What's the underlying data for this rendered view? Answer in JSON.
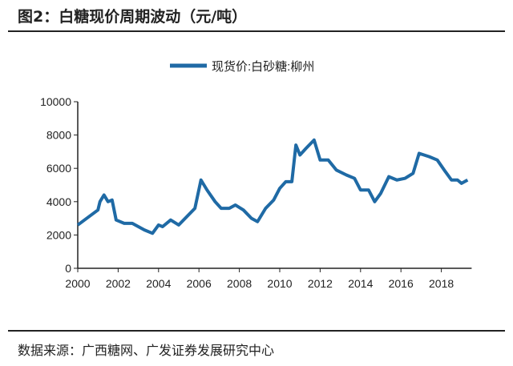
{
  "title": "图2：白糖现价周期波动（元/吨）",
  "source": "数据来源：广西糖网、广发证券发展研究中心",
  "chart_data": {
    "type": "line",
    "title": "",
    "xlabel": "",
    "ylabel": "",
    "xlim": [
      2000,
      2019.5
    ],
    "ylim": [
      0,
      10000
    ],
    "xticks": [
      2000,
      2002,
      2004,
      2006,
      2008,
      2010,
      2012,
      2014,
      2016,
      2018
    ],
    "yticks": [
      0,
      2000,
      4000,
      6000,
      8000,
      10000
    ],
    "grid": false,
    "legend_position": "top-center",
    "color": "#1f6aa5",
    "series": [
      {
        "name": "现货价:白砂糖:柳州",
        "x": [
          2000.0,
          2001.0,
          2001.1,
          2001.3,
          2001.5,
          2001.7,
          2001.9,
          2002.3,
          2002.7,
          2003.0,
          2003.3,
          2003.7,
          2004.0,
          2004.2,
          2004.6,
          2005.0,
          2005.4,
          2005.8,
          2006.1,
          2006.4,
          2006.8,
          2007.1,
          2007.5,
          2007.8,
          2008.2,
          2008.6,
          2008.9,
          2009.3,
          2009.7,
          2010.0,
          2010.3,
          2010.6,
          2010.8,
          2011.0,
          2011.3,
          2011.7,
          2012.0,
          2012.4,
          2012.8,
          2013.3,
          2013.7,
          2014.0,
          2014.4,
          2014.7,
          2015.0,
          2015.4,
          2015.8,
          2016.2,
          2016.6,
          2016.9,
          2017.4,
          2017.8,
          2018.2,
          2018.5,
          2018.8,
          2019.0,
          2019.3
        ],
        "values": [
          2600,
          3500,
          4000,
          4400,
          4000,
          4100,
          2900,
          2700,
          2700,
          2500,
          2300,
          2100,
          2600,
          2500,
          2900,
          2600,
          3100,
          3600,
          5300,
          4700,
          4000,
          3600,
          3600,
          3800,
          3500,
          3000,
          2800,
          3600,
          4100,
          4800,
          5200,
          5200,
          7400,
          6800,
          7200,
          7700,
          6500,
          6500,
          5900,
          5600,
          5400,
          4700,
          4700,
          4000,
          4500,
          5500,
          5300,
          5400,
          5700,
          6900,
          6700,
          6500,
          5800,
          5300,
          5300,
          5100,
          5300
        ]
      }
    ]
  }
}
